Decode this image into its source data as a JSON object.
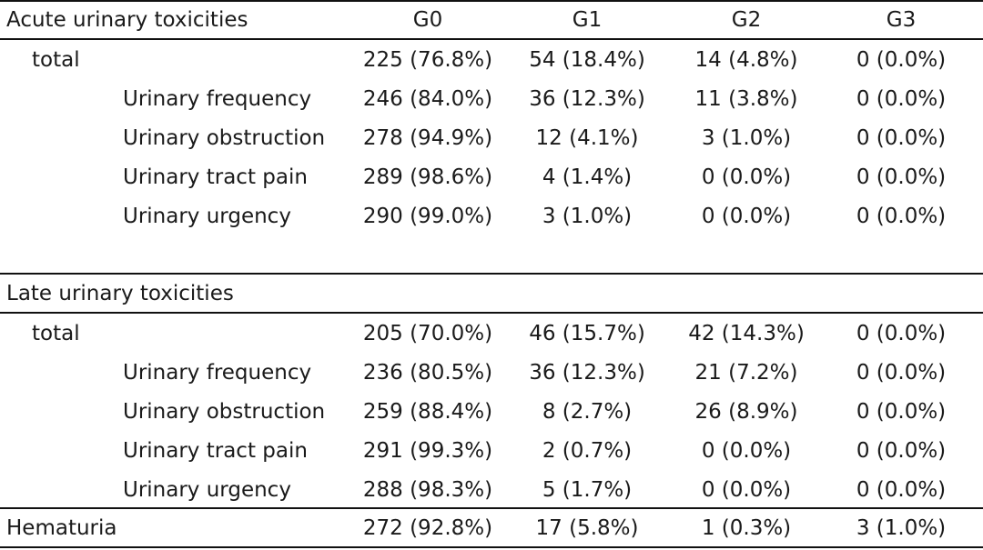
{
  "columns": [
    "G0",
    "G1",
    "G2",
    "G3"
  ],
  "acute": {
    "heading": "Acute urinary toxicities",
    "rows": [
      {
        "label": "total",
        "values": [
          "225 (76.8%)",
          "54 (18.4%)",
          "14 (4.8%)",
          "0 (0.0%)"
        ]
      },
      {
        "label": "Urinary frequency",
        "values": [
          "246 (84.0%)",
          "36 (12.3%)",
          "11 (3.8%)",
          "0 (0.0%)"
        ]
      },
      {
        "label": "Urinary obstruction",
        "values": [
          "278 (94.9%)",
          "12 (4.1%)",
          "3 (1.0%)",
          "0 (0.0%)"
        ]
      },
      {
        "label": "Urinary tract pain",
        "values": [
          "289 (98.6%)",
          "4 (1.4%)",
          "0 (0.0%)",
          "0 (0.0%)"
        ]
      },
      {
        "label": "Urinary urgency",
        "values": [
          "290 (99.0%)",
          "3 (1.0%)",
          "0 (0.0%)",
          "0 (0.0%)"
        ]
      }
    ]
  },
  "late": {
    "heading": "Late urinary toxicities",
    "rows": [
      {
        "label": "total",
        "values": [
          "205 (70.0%)",
          "46 (15.7%)",
          "42 (14.3%)",
          "0 (0.0%)"
        ]
      },
      {
        "label": "Urinary frequency",
        "values": [
          "236 (80.5%)",
          "36 (12.3%)",
          "21 (7.2%)",
          "0 (0.0%)"
        ]
      },
      {
        "label": "Urinary obstruction",
        "values": [
          "259 (88.4%)",
          "8 (2.7%)",
          "26 (8.9%)",
          "0 (0.0%)"
        ]
      },
      {
        "label": "Urinary tract pain",
        "values": [
          "291 (99.3%)",
          "2 (0.7%)",
          "0 (0.0%)",
          "0 (0.0%)"
        ]
      },
      {
        "label": "Urinary urgency",
        "values": [
          "288 (98.3%)",
          "5 (1.7%)",
          "0 (0.0%)",
          "0 (0.0%)"
        ]
      }
    ]
  },
  "hematuria": {
    "label": "Hematuria",
    "values": [
      "272 (92.8%)",
      "17 (5.8%)",
      "1 (0.3%)",
      "3 (1.0%)"
    ]
  }
}
